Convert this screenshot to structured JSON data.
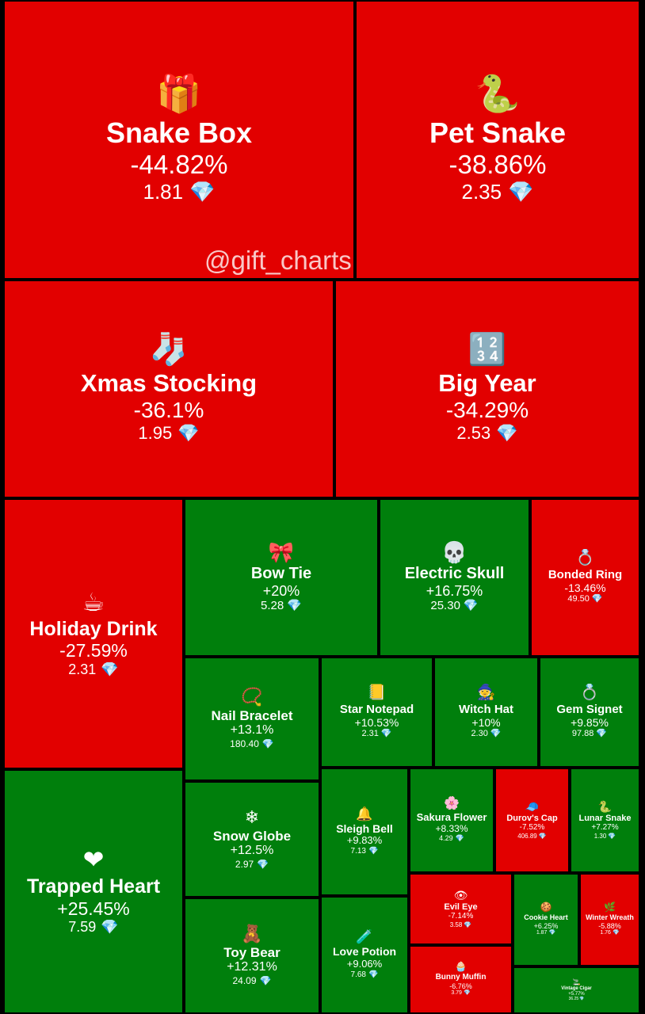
{
  "watermark": "@gift_charts",
  "chart_data": {
    "type": "treemap",
    "value_unit_icon": "gem-icon",
    "colors": {
      "down": "#e20000",
      "up": "#007f0c"
    },
    "items": [
      {
        "name": "Snake Box",
        "change": "-44.82%",
        "price": "1.81",
        "icon": "gift-box-icon"
      },
      {
        "name": "Pet Snake",
        "change": "-38.86%",
        "price": "2.35",
        "icon": "snake-icon"
      },
      {
        "name": "Xmas Stocking",
        "change": "-36.1%",
        "price": "1.95",
        "icon": "stocking-icon"
      },
      {
        "name": "Big Year",
        "change": "-34.29%",
        "price": "2.53",
        "icon": "number-2025-icon"
      },
      {
        "name": "Holiday Drink",
        "change": "-27.59%",
        "price": "2.31",
        "icon": "drink-mug-icon"
      },
      {
        "name": "Bow Tie",
        "change": "+20%",
        "price": "5.28",
        "icon": "bow-tie-icon"
      },
      {
        "name": "Electric Skull",
        "change": "+16.75%",
        "price": "25.30",
        "icon": "skull-icon"
      },
      {
        "name": "Bonded Ring",
        "change": "-13.46%",
        "price": "49.50",
        "icon": "ring-icon"
      },
      {
        "name": "Nail Bracelet",
        "change": "+13.1%",
        "price": "180.40",
        "icon": "bracelet-icon"
      },
      {
        "name": "Star Notepad",
        "change": "+10.53%",
        "price": "2.31",
        "icon": "notepad-icon"
      },
      {
        "name": "Witch Hat",
        "change": "+10%",
        "price": "2.30",
        "icon": "witch-hat-icon"
      },
      {
        "name": "Gem Signet",
        "change": "+9.85%",
        "price": "97.88",
        "icon": "signet-ring-icon"
      },
      {
        "name": "Trapped Heart",
        "change": "+25.45%",
        "price": "7.59",
        "icon": "heart-web-icon"
      },
      {
        "name": "Snow Globe",
        "change": "+12.5%",
        "price": "2.97",
        "icon": "snow-globe-icon"
      },
      {
        "name": "Sleigh Bell",
        "change": "+9.83%",
        "price": "7.13",
        "icon": "bell-icon"
      },
      {
        "name": "Sakura Flower",
        "change": "+8.33%",
        "price": "4.29",
        "icon": "sakura-icon"
      },
      {
        "name": "Durov's Cap",
        "change": "-7.52%",
        "price": "406.89",
        "icon": "cap-icon"
      },
      {
        "name": "Lunar Snake",
        "change": "+7.27%",
        "price": "1.30",
        "icon": "lunar-snake-icon"
      },
      {
        "name": "Toy Bear",
        "change": "+12.31%",
        "price": "24.09",
        "icon": "teddy-bear-icon"
      },
      {
        "name": "Love Potion",
        "change": "+9.06%",
        "price": "7.68",
        "icon": "potion-icon"
      },
      {
        "name": "Evil Eye",
        "change": "-7.14%",
        "price": "3.58",
        "icon": "eye-icon"
      },
      {
        "name": "Cookie Heart",
        "change": "+6.25%",
        "price": "1.87",
        "icon": "cookie-heart-icon"
      },
      {
        "name": "Winter Wreath",
        "change": "-5.88%",
        "price": "1.76",
        "icon": "wreath-icon"
      },
      {
        "name": "Bunny Muffin",
        "change": "-6.76%",
        "price": "3.79",
        "icon": "muffin-icon"
      },
      {
        "name": "Vintage Cigar",
        "change": "+5.77%",
        "price": "36.25",
        "icon": "cigar-icon"
      }
    ]
  }
}
